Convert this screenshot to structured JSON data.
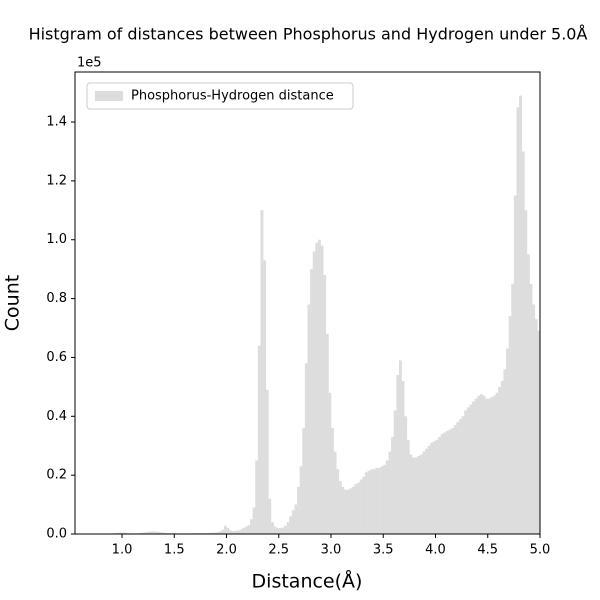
{
  "chart_data": {
    "type": "histogram",
    "title": "Histgram of distances between Phosphorus and Hydrogen under 5.0Å",
    "x_label": "Distance(Å)",
    "y_label": "Count",
    "y_offset_label": "1e5",
    "legend": "upper left",
    "series": [
      {
        "name": "Phosphorus-Hydrogen distance",
        "color": "#dddddd",
        "bins": [
          0.55,
          0.575,
          0.6,
          0.625,
          0.65,
          0.675,
          0.7,
          0.725,
          0.75,
          0.775,
          0.8,
          0.825,
          0.85,
          0.875,
          0.9,
          0.925,
          0.95,
          0.975,
          1.0,
          1.025,
          1.05,
          1.075,
          1.1,
          1.125,
          1.15,
          1.175,
          1.2,
          1.225,
          1.25,
          1.275,
          1.3,
          1.325,
          1.35,
          1.375,
          1.4,
          1.425,
          1.45,
          1.475,
          1.5,
          1.525,
          1.55,
          1.575,
          1.6,
          1.625,
          1.65,
          1.675,
          1.7,
          1.725,
          1.75,
          1.775,
          1.8,
          1.825,
          1.85,
          1.875,
          1.9,
          1.925,
          1.95,
          1.975,
          2.0,
          2.025,
          2.05,
          2.075,
          2.1,
          2.125,
          2.15,
          2.175,
          2.2,
          2.225,
          2.25,
          2.275,
          2.3,
          2.325,
          2.35,
          2.375,
          2.4,
          2.425,
          2.45,
          2.475,
          2.5,
          2.525,
          2.55,
          2.575,
          2.6,
          2.625,
          2.65,
          2.675,
          2.7,
          2.725,
          2.75,
          2.775,
          2.8,
          2.825,
          2.85,
          2.875,
          2.9,
          2.925,
          2.95,
          2.975,
          3.0,
          3.025,
          3.05,
          3.075,
          3.1,
          3.125,
          3.15,
          3.175,
          3.2,
          3.225,
          3.25,
          3.275,
          3.3,
          3.325,
          3.35,
          3.375,
          3.4,
          3.425,
          3.45,
          3.475,
          3.5,
          3.525,
          3.55,
          3.575,
          3.6,
          3.625,
          3.65,
          3.675,
          3.7,
          3.725,
          3.75,
          3.775,
          3.8,
          3.825,
          3.85,
          3.875,
          3.9,
          3.925,
          3.95,
          3.975,
          4.0,
          4.025,
          4.05,
          4.075,
          4.1,
          4.125,
          4.15,
          4.175,
          4.2,
          4.225,
          4.25,
          4.275,
          4.3,
          4.325,
          4.35,
          4.375,
          4.4,
          4.425,
          4.45,
          4.475,
          4.5,
          4.525,
          4.55,
          4.575,
          4.6,
          4.625,
          4.65,
          4.675,
          4.7,
          4.725,
          4.75,
          4.775,
          4.8,
          4.825,
          4.85,
          4.875,
          4.9,
          4.925,
          4.95,
          4.975,
          5.0
        ],
        "values": [
          0,
          0,
          0,
          0,
          0,
          0,
          0,
          0,
          0,
          0,
          0,
          0,
          0,
          100,
          200,
          300,
          400,
          500,
          500,
          400,
          300,
          200,
          200,
          200,
          300,
          400,
          500,
          700,
          800,
          900,
          900,
          800,
          700,
          500,
          400,
          300,
          300,
          300,
          300,
          200,
          200,
          200,
          200,
          200,
          200,
          300,
          300,
          300,
          300,
          300,
          300,
          400,
          400,
          500,
          600,
          900,
          1500,
          2800,
          2000,
          1200,
          1000,
          1100,
          1200,
          1500,
          2000,
          2500,
          3000,
          5000,
          9000,
          25000,
          64000,
          110000,
          93000,
          49000,
          12000,
          4000,
          2500,
          2000,
          2000,
          2200,
          2800,
          4000,
          6000,
          8000,
          10000,
          16000,
          23000,
          36000,
          58000,
          78000,
          90000,
          96000,
          99000,
          100000,
          98000,
          88000,
          68000,
          48000,
          36000,
          28000,
          22000,
          18000,
          16000,
          15000,
          15000,
          15500,
          16000,
          17000,
          17500,
          18500,
          19500,
          21000,
          21500,
          22000,
          22000,
          22500,
          22500,
          23000,
          23500,
          25000,
          28000,
          33000,
          42000,
          54000,
          59000,
          52000,
          40000,
          32000,
          27000,
          26000,
          26000,
          26500,
          27000,
          28000,
          29000,
          30000,
          31000,
          31500,
          32000,
          33000,
          34000,
          34500,
          35000,
          35500,
          36000,
          37000,
          38000,
          39000,
          40000,
          42000,
          43000,
          44000,
          45000,
          46000,
          47000,
          47500,
          47000,
          46000,
          46000,
          46500,
          47000,
          48000,
          50000,
          52000,
          56000,
          63000,
          74000,
          85000,
          115000,
          145000,
          149000,
          130000,
          110000,
          95000,
          85000,
          78000,
          73000,
          69000
        ]
      }
    ],
    "xlim": [
      0.55,
      5.0
    ],
    "xticks": [
      {
        "value": 1,
        "label": "1.0"
      },
      1.5,
      {
        "value": 2,
        "label": "2.0"
      },
      2.5,
      {
        "value": 3,
        "label": "3.0"
      },
      3.5,
      {
        "value": 4,
        "label": "4.0"
      },
      4.5,
      {
        "value": 5,
        "label": "5.0"
      }
    ],
    "ylim": [
      0,
      157000
    ],
    "yticks": [
      {
        "value": 0,
        "label": "0.0"
      },
      {
        "value": 20000,
        "label": "0.2"
      },
      {
        "value": 40000,
        "label": "0.4"
      },
      {
        "value": 60000,
        "label": "0.6"
      },
      {
        "value": 80000,
        "label": "0.8"
      },
      {
        "value": 100000,
        "label": "1.0"
      },
      {
        "value": 120000,
        "label": "1.2"
      },
      {
        "value": 140000,
        "label": "1.4"
      }
    ],
    "grid": false
  }
}
